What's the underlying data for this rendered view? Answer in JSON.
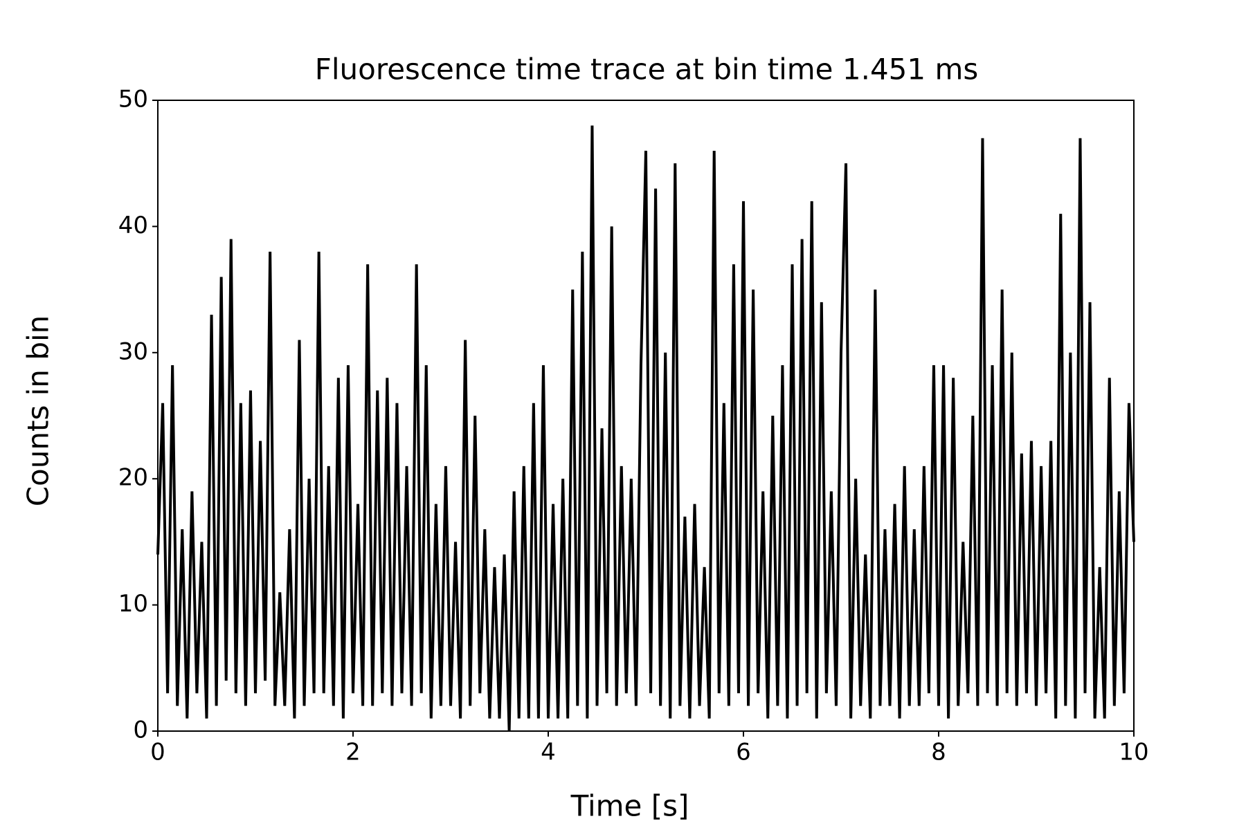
{
  "chart_data": {
    "type": "line",
    "title": "Fluorescence time trace at bin time 1.451 ms",
    "x_label": "Time [s]",
    "y_label": "Counts in bin",
    "color": "#000000",
    "xlim": [
      0,
      10
    ],
    "xticks": [
      0,
      2,
      4,
      6,
      8,
      10
    ],
    "ylim": [
      0,
      50
    ],
    "yticks": [
      0,
      10,
      20,
      30,
      40,
      50
    ],
    "x": [
      0,
      0.05,
      0.1,
      0.15,
      0.2,
      0.25,
      0.3,
      0.35,
      0.4,
      0.45,
      0.5,
      0.55,
      0.6,
      0.65,
      0.7,
      0.75,
      0.8,
      0.85,
      0.9,
      0.95,
      1,
      1.05,
      1.1,
      1.15,
      1.2,
      1.25,
      1.3,
      1.35,
      1.4,
      1.45,
      1.5,
      1.55,
      1.6,
      1.65,
      1.7,
      1.75,
      1.8,
      1.85,
      1.9,
      1.95,
      2,
      2.05,
      2.1,
      2.15,
      2.2,
      2.25,
      2.3,
      2.35,
      2.4,
      2.45,
      2.5,
      2.55,
      2.6,
      2.65,
      2.7,
      2.75,
      2.8,
      2.85,
      2.9,
      2.95,
      3,
      3.05,
      3.1,
      3.15,
      3.2,
      3.25,
      3.3,
      3.35,
      3.4,
      3.45,
      3.5,
      3.55,
      3.6,
      3.65,
      3.7,
      3.75,
      3.8,
      3.85,
      3.9,
      3.95,
      4,
      4.05,
      4.1,
      4.15,
      4.2,
      4.25,
      4.3,
      4.35,
      4.4,
      4.45,
      4.5,
      4.55,
      4.6,
      4.65,
      4.7,
      4.75,
      4.8,
      4.85,
      4.9,
      4.95,
      5,
      5.05,
      5.1,
      5.15,
      5.2,
      5.25,
      5.3,
      5.35,
      5.4,
      5.45,
      5.5,
      5.55,
      5.6,
      5.65,
      5.7,
      5.75,
      5.8,
      5.85,
      5.9,
      5.95,
      6,
      6.05,
      6.1,
      6.15,
      6.2,
      6.25,
      6.3,
      6.35,
      6.4,
      6.45,
      6.5,
      6.55,
      6.6,
      6.65,
      6.7,
      6.75,
      6.8,
      6.85,
      6.9,
      6.95,
      7,
      7.05,
      7.1,
      7.15,
      7.2,
      7.25,
      7.3,
      7.35,
      7.4,
      7.45,
      7.5,
      7.55,
      7.6,
      7.65,
      7.7,
      7.75,
      7.8,
      7.85,
      7.9,
      7.95,
      8,
      8.05,
      8.1,
      8.15,
      8.2,
      8.25,
      8.3,
      8.35,
      8.4,
      8.45,
      8.5,
      8.55,
      8.6,
      8.65,
      8.7,
      8.75,
      8.8,
      8.85,
      8.9,
      8.95,
      9,
      9.05,
      9.1,
      9.15,
      9.2,
      9.25,
      9.3,
      9.35,
      9.4,
      9.45,
      9.5,
      9.55,
      9.6,
      9.65,
      9.7,
      9.75,
      9.8,
      9.85,
      9.9,
      9.95,
      10
    ],
    "values": [
      14,
      26,
      3,
      29,
      2,
      16,
      1,
      19,
      3,
      15,
      1,
      33,
      2,
      36,
      4,
      39,
      3,
      26,
      2,
      27,
      3,
      23,
      4,
      38,
      2,
      11,
      2,
      16,
      1,
      31,
      2,
      20,
      3,
      38,
      3,
      21,
      2,
      28,
      1,
      29,
      3,
      18,
      2,
      37,
      2,
      27,
      3,
      28,
      2,
      26,
      3,
      21,
      2,
      37,
      3,
      29,
      1,
      18,
      2,
      21,
      2,
      15,
      1,
      31,
      2,
      25,
      3,
      16,
      1,
      13,
      1,
      14,
      0,
      19,
      1,
      21,
      1,
      26,
      1,
      29,
      1,
      18,
      1,
      20,
      1,
      35,
      2,
      38,
      1,
      48,
      2,
      24,
      3,
      40,
      2,
      21,
      3,
      20,
      2,
      29,
      46,
      3,
      43,
      2,
      30,
      1,
      45,
      2,
      17,
      1,
      18,
      2,
      13,
      1,
      46,
      3,
      26,
      2,
      37,
      3,
      42,
      2,
      35,
      3,
      19,
      1,
      25,
      2,
      29,
      1,
      37,
      2,
      39,
      3,
      42,
      1,
      34,
      3,
      19,
      2,
      30,
      45,
      1,
      20,
      2,
      14,
      1,
      35,
      2,
      16,
      2,
      18,
      1,
      21,
      2,
      16,
      2,
      21,
      3,
      29,
      2,
      29,
      1,
      28,
      2,
      15,
      3,
      25,
      2,
      47,
      3,
      29,
      2,
      35,
      3,
      30,
      2,
      22,
      3,
      23,
      2,
      21,
      3,
      23,
      1,
      41,
      2,
      30,
      1,
      47,
      3,
      34,
      1,
      13,
      1,
      28,
      2,
      19,
      3,
      26,
      15
    ]
  }
}
